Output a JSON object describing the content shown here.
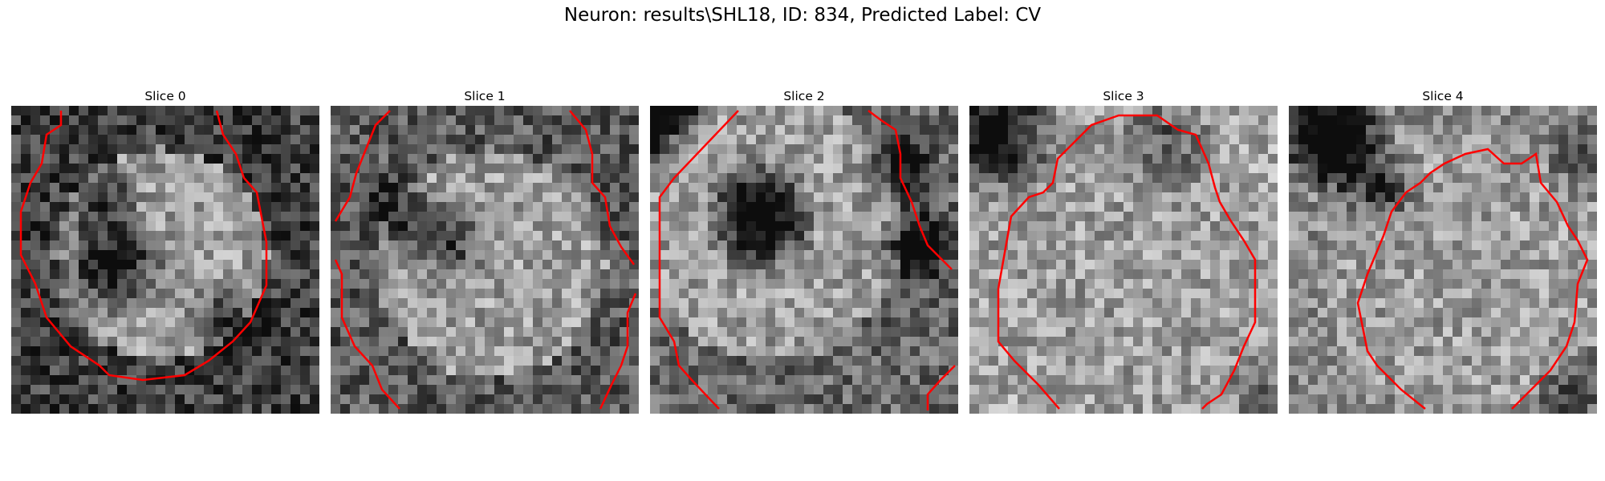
{
  "figure": {
    "title": "Neuron: results\\SHL18, ID: 834, Predicted Label: CV"
  },
  "contour_color": "#ff0000",
  "panels": [
    {
      "title": "Slice 0"
    },
    {
      "title": "Slice 1"
    },
    {
      "title": "Slice 2"
    },
    {
      "title": "Slice 3"
    },
    {
      "title": "Slice 4"
    }
  ]
}
